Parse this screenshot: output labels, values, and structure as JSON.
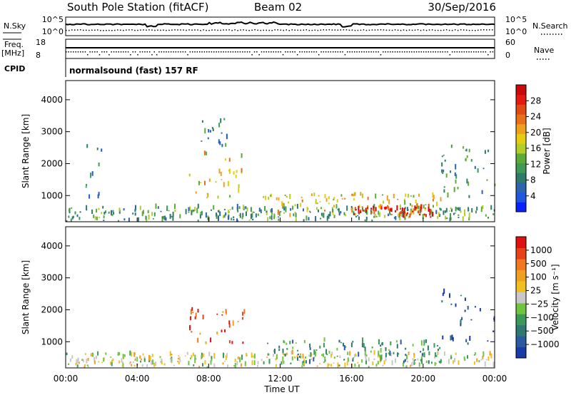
{
  "header": {
    "station": "South Pole Station (fitACF)",
    "beam": "Beam 02",
    "date": "30/Sep/2016"
  },
  "top_panels": {
    "nsky_label": "N.Sky",
    "nsky_ticks": [
      "10^5",
      "10^0"
    ],
    "nsearch_label": "N.Search",
    "nsearch_ticks": [
      "10^5",
      "10^0"
    ],
    "freq_label": "Freq.",
    "freq_unit": "[MHz]",
    "freq_ticks": [
      "18",
      "8"
    ],
    "nave_label": "Nave",
    "nave_ticks": [
      "60",
      "0"
    ],
    "cpid_label": "CPID",
    "cpid_text": "normalsound (fast) 157 RF"
  },
  "chart_data": [
    {
      "type": "heatmap",
      "name": "power",
      "ylabel": "Slant Range [km]",
      "xlabel": "",
      "ylim": [
        180,
        4600
      ],
      "yticks": [
        "1000",
        "2000",
        "3000",
        "4000"
      ],
      "ytick_values": [
        1000,
        2000,
        3000,
        4000
      ],
      "colorbar": {
        "label": "Power [dB]",
        "ticks": [
          "4",
          "8",
          "12",
          "16",
          "20",
          "24",
          "28"
        ],
        "tick_values": [
          4,
          8,
          12,
          16,
          20,
          24,
          28
        ],
        "range": [
          0,
          32
        ],
        "colors": [
          "#0a22ff",
          "#1e58e0",
          "#2c64b0",
          "#2f7a6a",
          "#3e9a55",
          "#5aab3a",
          "#b2cc28",
          "#e6cc10",
          "#f0a020",
          "#e87018",
          "#e04a14",
          "#e41a10",
          "#c80a0a"
        ]
      },
      "blobs": [
        {
          "t0": 0.0,
          "t1": 24.0,
          "r0": 180,
          "r1": 600,
          "level": 0.35
        },
        {
          "t0": 1.0,
          "t1": 2.0,
          "r0": 800,
          "r1": 2500,
          "level": 0.25
        },
        {
          "t0": 6.8,
          "t1": 10.0,
          "r0": 900,
          "r1": 2300,
          "level": 0.55
        },
        {
          "t0": 7.5,
          "t1": 9.0,
          "r0": 2500,
          "r1": 3500,
          "level": 0.25
        },
        {
          "t0": 11.0,
          "t1": 21.0,
          "r0": 300,
          "r1": 1000,
          "level": 0.55
        },
        {
          "t0": 16.0,
          "t1": 20.5,
          "r0": 300,
          "r1": 600,
          "level": 0.9
        },
        {
          "t0": 21.0,
          "t1": 24.0,
          "r0": 900,
          "r1": 2500,
          "level": 0.3
        }
      ]
    },
    {
      "type": "heatmap",
      "name": "velocity",
      "ylabel": "Slant Range [km]",
      "xlabel": "Time UT",
      "ylim": [
        180,
        4600
      ],
      "yticks": [
        "1000",
        "2000",
        "3000",
        "4000"
      ],
      "ytick_values": [
        1000,
        2000,
        3000,
        4000
      ],
      "x": [
        "00:00",
        "04:00",
        "08:00",
        "12:00",
        "16:00",
        "20:00",
        "00:00"
      ],
      "x_hours": [
        0,
        4,
        8,
        12,
        16,
        20,
        24
      ],
      "colorbar": {
        "label": "Velocity [m s⁻¹]",
        "ticks": [
          "1000",
          "500",
          "100",
          "25",
          "−25",
          "−100",
          "−500",
          "−1000"
        ],
        "tick_values": [
          1000,
          500,
          100,
          25,
          -25,
          -100,
          -500,
          -1000
        ],
        "colors": [
          "#1a3aa8",
          "#2c5aa0",
          "#2e7a70",
          "#3a9a5a",
          "#70c440",
          "#c8c8c8",
          "#f0c020",
          "#f0a020",
          "#f07820",
          "#e84018",
          "#e01010"
        ]
      },
      "blobs": [
        {
          "t0": 0.0,
          "t1": 24.0,
          "r0": 180,
          "r1": 600,
          "level": 0.5
        },
        {
          "t0": 6.8,
          "t1": 10.0,
          "r0": 900,
          "r1": 2000,
          "level": 0.85
        },
        {
          "t0": 11.0,
          "t1": 21.0,
          "r0": 300,
          "r1": 1000,
          "level": 0.3
        },
        {
          "t0": 21.0,
          "t1": 24.0,
          "r0": 900,
          "r1": 2500,
          "level": 0.1
        }
      ]
    }
  ]
}
